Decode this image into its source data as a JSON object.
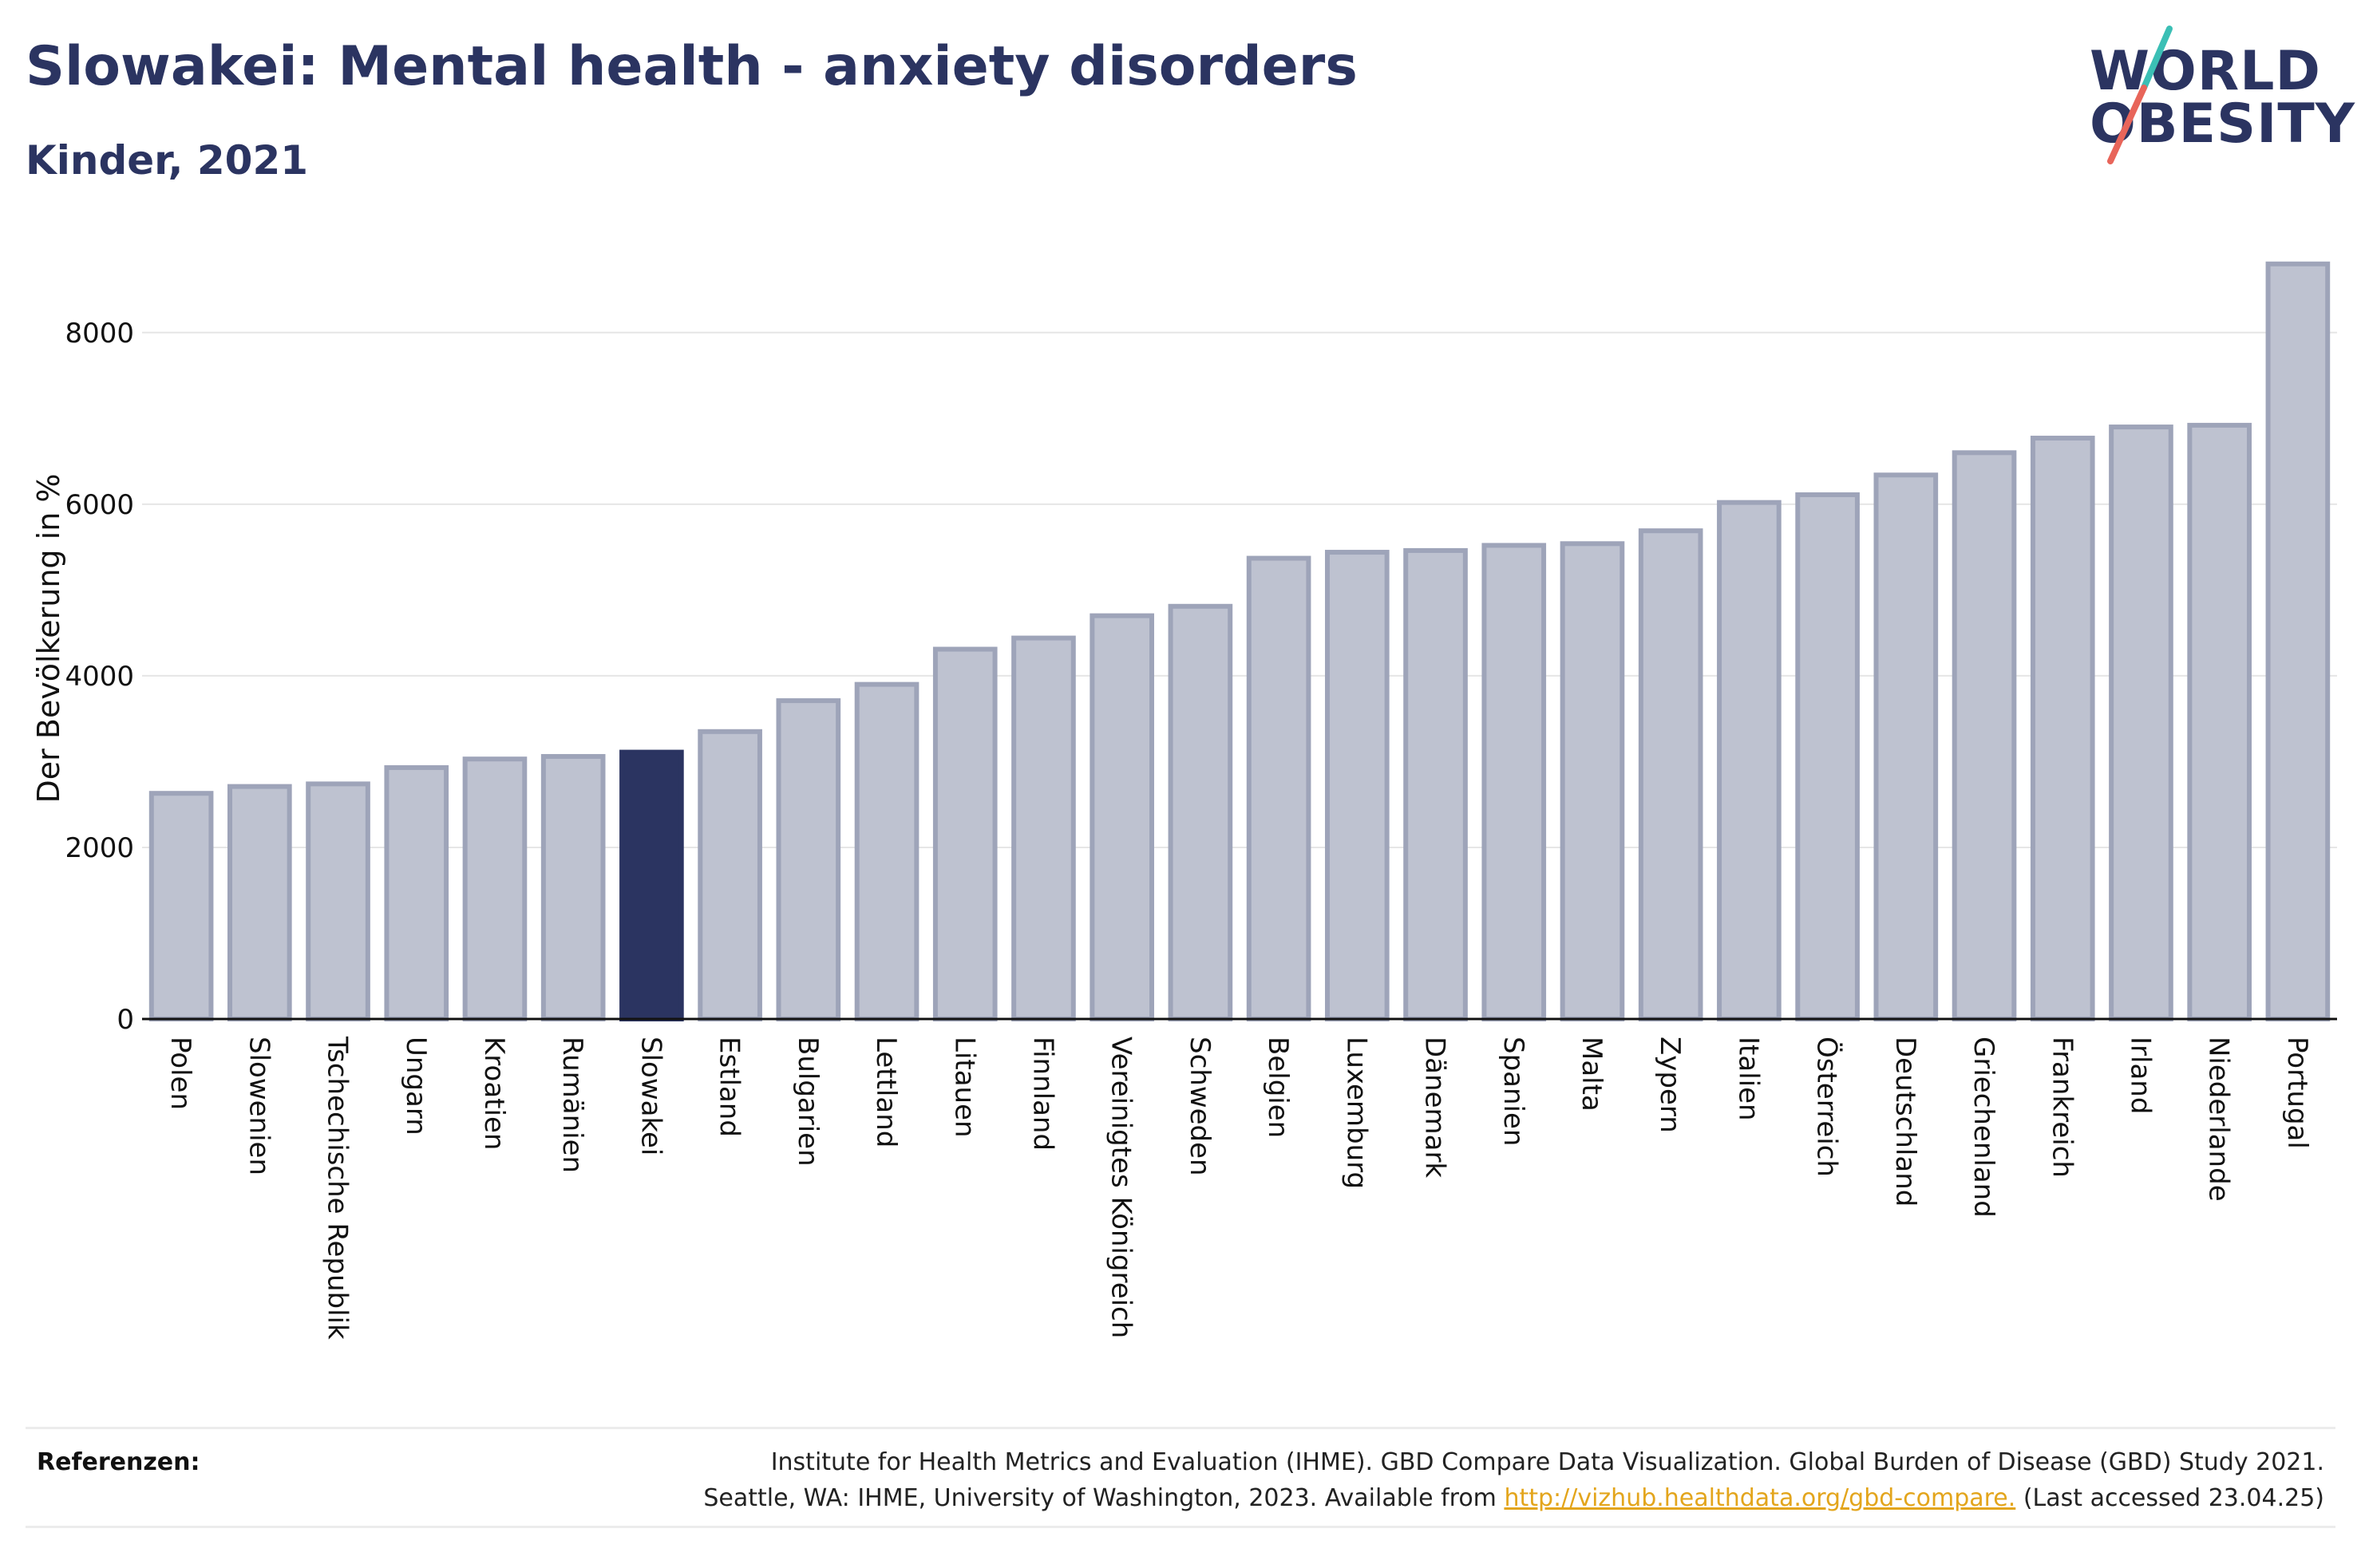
{
  "title": "Slowakei: Mental health - anxiety disorders",
  "subtitle": "Kinder, 2021",
  "logo": {
    "line1": "WORLD",
    "line2": "OBESITY",
    "slash_color_top": "#3bbfb5",
    "slash_color_bottom": "#e8655a"
  },
  "colors": {
    "bar_default": "#bec2d0",
    "bar_default_stroke": "#9ea4b9",
    "bar_highlight": "#2b3461",
    "title": "#2b3461",
    "link": "#e3a51c"
  },
  "chart_data": {
    "type": "bar",
    "ylabel": "Der Bevölkerung in %",
    "ylim": [
      0,
      8900
    ],
    "yticks": [
      0,
      2000,
      4000,
      6000,
      8000
    ],
    "grid": true,
    "highlight": "Slowakei",
    "categories": [
      "Polen",
      "Slowenien",
      "Tschechische Republik",
      "Ungarn",
      "Kroatien",
      "Rumänien",
      "Slowakei",
      "Estland",
      "Bulgarien",
      "Lettland",
      "Litauen",
      "Finnland",
      "Vereinigtes Königreich",
      "Schweden",
      "Belgien",
      "Luxemburg",
      "Dänemark",
      "Spanien",
      "Malta",
      "Zypern",
      "Italien",
      "Österreich",
      "Deutschland",
      "Griechenland",
      "Frankreich",
      "Irland",
      "Niederlande",
      "Portugal"
    ],
    "values": [
      2630,
      2710,
      2740,
      2930,
      3030,
      3060,
      3110,
      3350,
      3710,
      3900,
      4310,
      4440,
      4700,
      4810,
      5370,
      5440,
      5460,
      5520,
      5540,
      5690,
      6020,
      6110,
      6340,
      6600,
      6770,
      6900,
      6920,
      8800
    ]
  },
  "references": {
    "label": "Referenzen:",
    "line1": "Institute for Health Metrics and Evaluation (IHME). GBD Compare Data Visualization. Global Burden of Disease (GBD) Study 2021.",
    "line2_prefix": "Seattle, WA: IHME, University of Washington, 2023. Available from ",
    "link": "http://vizhub.healthdata.org/gbd-compare.",
    "line2_suffix": " (Last accessed 23.04.25)"
  }
}
